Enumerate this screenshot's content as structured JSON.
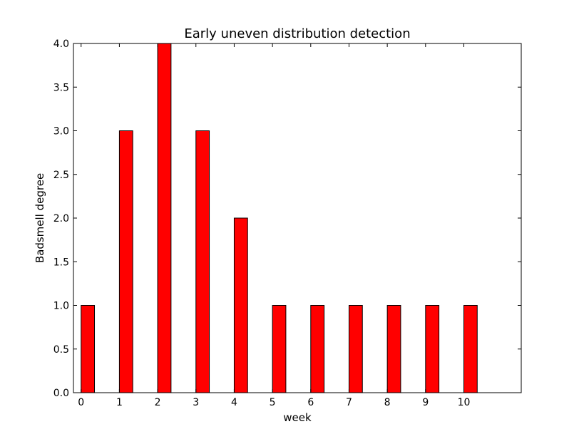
{
  "chart_data": {
    "type": "bar",
    "title": "Early uneven distribution detection",
    "xlabel": "week",
    "ylabel": "Badsmell degree",
    "categories": [
      "0",
      "1",
      "2",
      "3",
      "4",
      "5",
      "6",
      "7",
      "8",
      "9",
      "10"
    ],
    "x": [
      0,
      1,
      2,
      3,
      4,
      5,
      6,
      7,
      8,
      9,
      10
    ],
    "values": [
      1,
      3,
      4,
      3,
      2,
      1,
      1,
      1,
      1,
      1,
      1
    ],
    "xlim": [
      -0.2,
      11.5
    ],
    "ylim": [
      0,
      4
    ],
    "yticks": [
      "0.0",
      "0.5",
      "1.0",
      "1.5",
      "2.0",
      "2.5",
      "3.0",
      "3.5",
      "4.0"
    ],
    "bar_color": "#ff0000",
    "edge_color": "#000000",
    "grid": false,
    "legend": "none"
  }
}
